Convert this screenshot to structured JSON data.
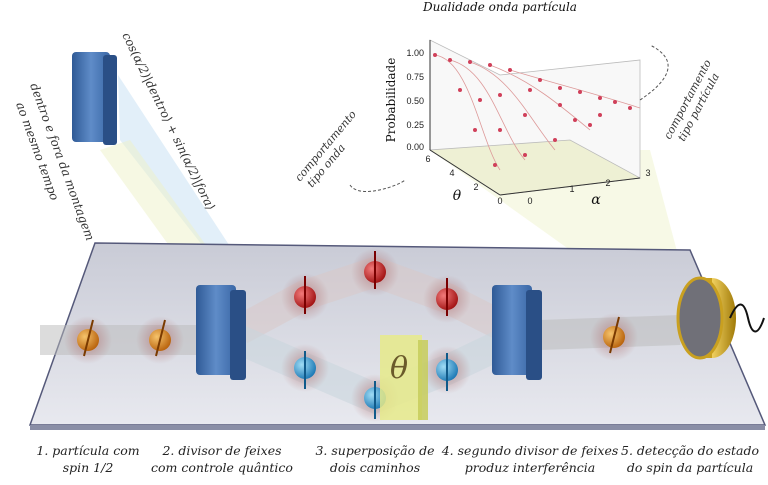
{
  "inset": {
    "title": "Dualidade onda partícula",
    "z_axis": {
      "label": "Probabilidade",
      "ticks": [
        "1.00",
        "0.75",
        "0.50",
        "0.25",
        "0.00"
      ]
    },
    "theta_axis": {
      "label": "θ",
      "ticks": [
        "6",
        "4",
        "2",
        "0"
      ]
    },
    "alpha_axis": {
      "label": "α",
      "ticks": [
        "0",
        "1",
        "2",
        "3"
      ]
    },
    "wave_note": [
      "comportamento",
      "tipo onda"
    ],
    "particle_note": [
      "comportamento",
      "tipo partícula"
    ]
  },
  "state_formula": "cos(α/2)|dentro⟩ + sin(α/2)|fora⟩",
  "superposition_note": [
    "dentro e fora da montagem",
    "ao mesmo tempo"
  ],
  "phase_label": "θ",
  "captions": [
    [
      "1. partícula com",
      "spin 1/2"
    ],
    [
      "2. divisor de feixes",
      "com controle quântico"
    ],
    [
      "3. superposição de",
      "dois caminhos"
    ],
    [
      "4. segundo divisor de feixes",
      "produz interferência"
    ],
    [
      "5. detecção do estado",
      "do spin da partícula"
    ]
  ]
}
